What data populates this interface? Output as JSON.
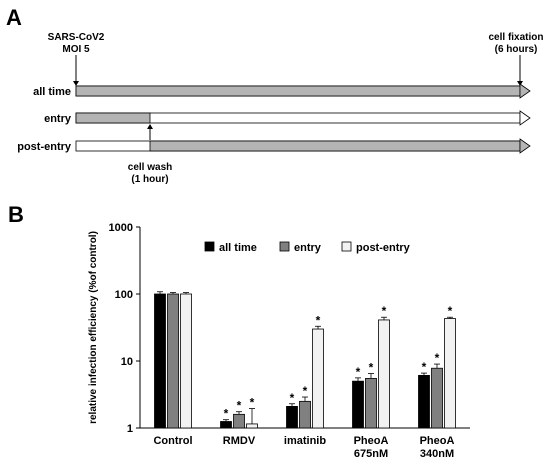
{
  "panel_a": {
    "panel_label": "A",
    "start_label_line1": "SARS-CoV2",
    "start_label_line2": "MOI 5",
    "end_label_line1": "cell fixation",
    "end_label_line2": "(6 hours)",
    "wash_label_line1": "cell wash",
    "wash_label_line2": "(1 hour)",
    "total_hours": 6,
    "wash_hour": 1,
    "rows": [
      {
        "label": "all time",
        "treated_hours": [
          0,
          6
        ]
      },
      {
        "label": "entry",
        "treated_hours": [
          0,
          1
        ]
      },
      {
        "label": "post-entry",
        "treated_hours": [
          1,
          6
        ]
      }
    ],
    "colors": {
      "treated": "#b4b4b4",
      "untreated": "#ffffff"
    }
  },
  "panel_b": {
    "panel_label": "B"
  },
  "chart_data": {
    "type": "bar",
    "title": "",
    "ylabel": "relative infection efficiency (%of control)",
    "xlabel": "",
    "yscale": "log",
    "ylim": [
      1,
      1000
    ],
    "ytick_labels": [
      "1",
      "10",
      "100",
      "1000"
    ],
    "categories": [
      [
        "Control"
      ],
      [
        "RMDV"
      ],
      [
        "imatinib"
      ],
      [
        "PheoA",
        "675nM"
      ],
      [
        "PheoA",
        "340nM"
      ]
    ],
    "legend_position": "top",
    "series": [
      {
        "name": "all time",
        "color": "#000000",
        "values": [
          100,
          1.25,
          2.1,
          5.0,
          6.1
        ],
        "errors": [
          8,
          0.08,
          0.2,
          0.6,
          0.5
        ],
        "significant": [
          false,
          true,
          true,
          true,
          true
        ]
      },
      {
        "name": "entry",
        "color": "#808080",
        "values": [
          100,
          1.6,
          2.5,
          5.5,
          7.8
        ],
        "errors": [
          5,
          0.15,
          0.4,
          1.0,
          1.2
        ],
        "significant": [
          false,
          true,
          true,
          true,
          true
        ]
      },
      {
        "name": "post-entry",
        "color": "#f2f2f2",
        "values": [
          100,
          1.15,
          30,
          41,
          43
        ],
        "errors": [
          5,
          0.8,
          3,
          4,
          2
        ],
        "significant": [
          false,
          true,
          true,
          true,
          true
        ]
      }
    ],
    "significance_marker": "*"
  }
}
